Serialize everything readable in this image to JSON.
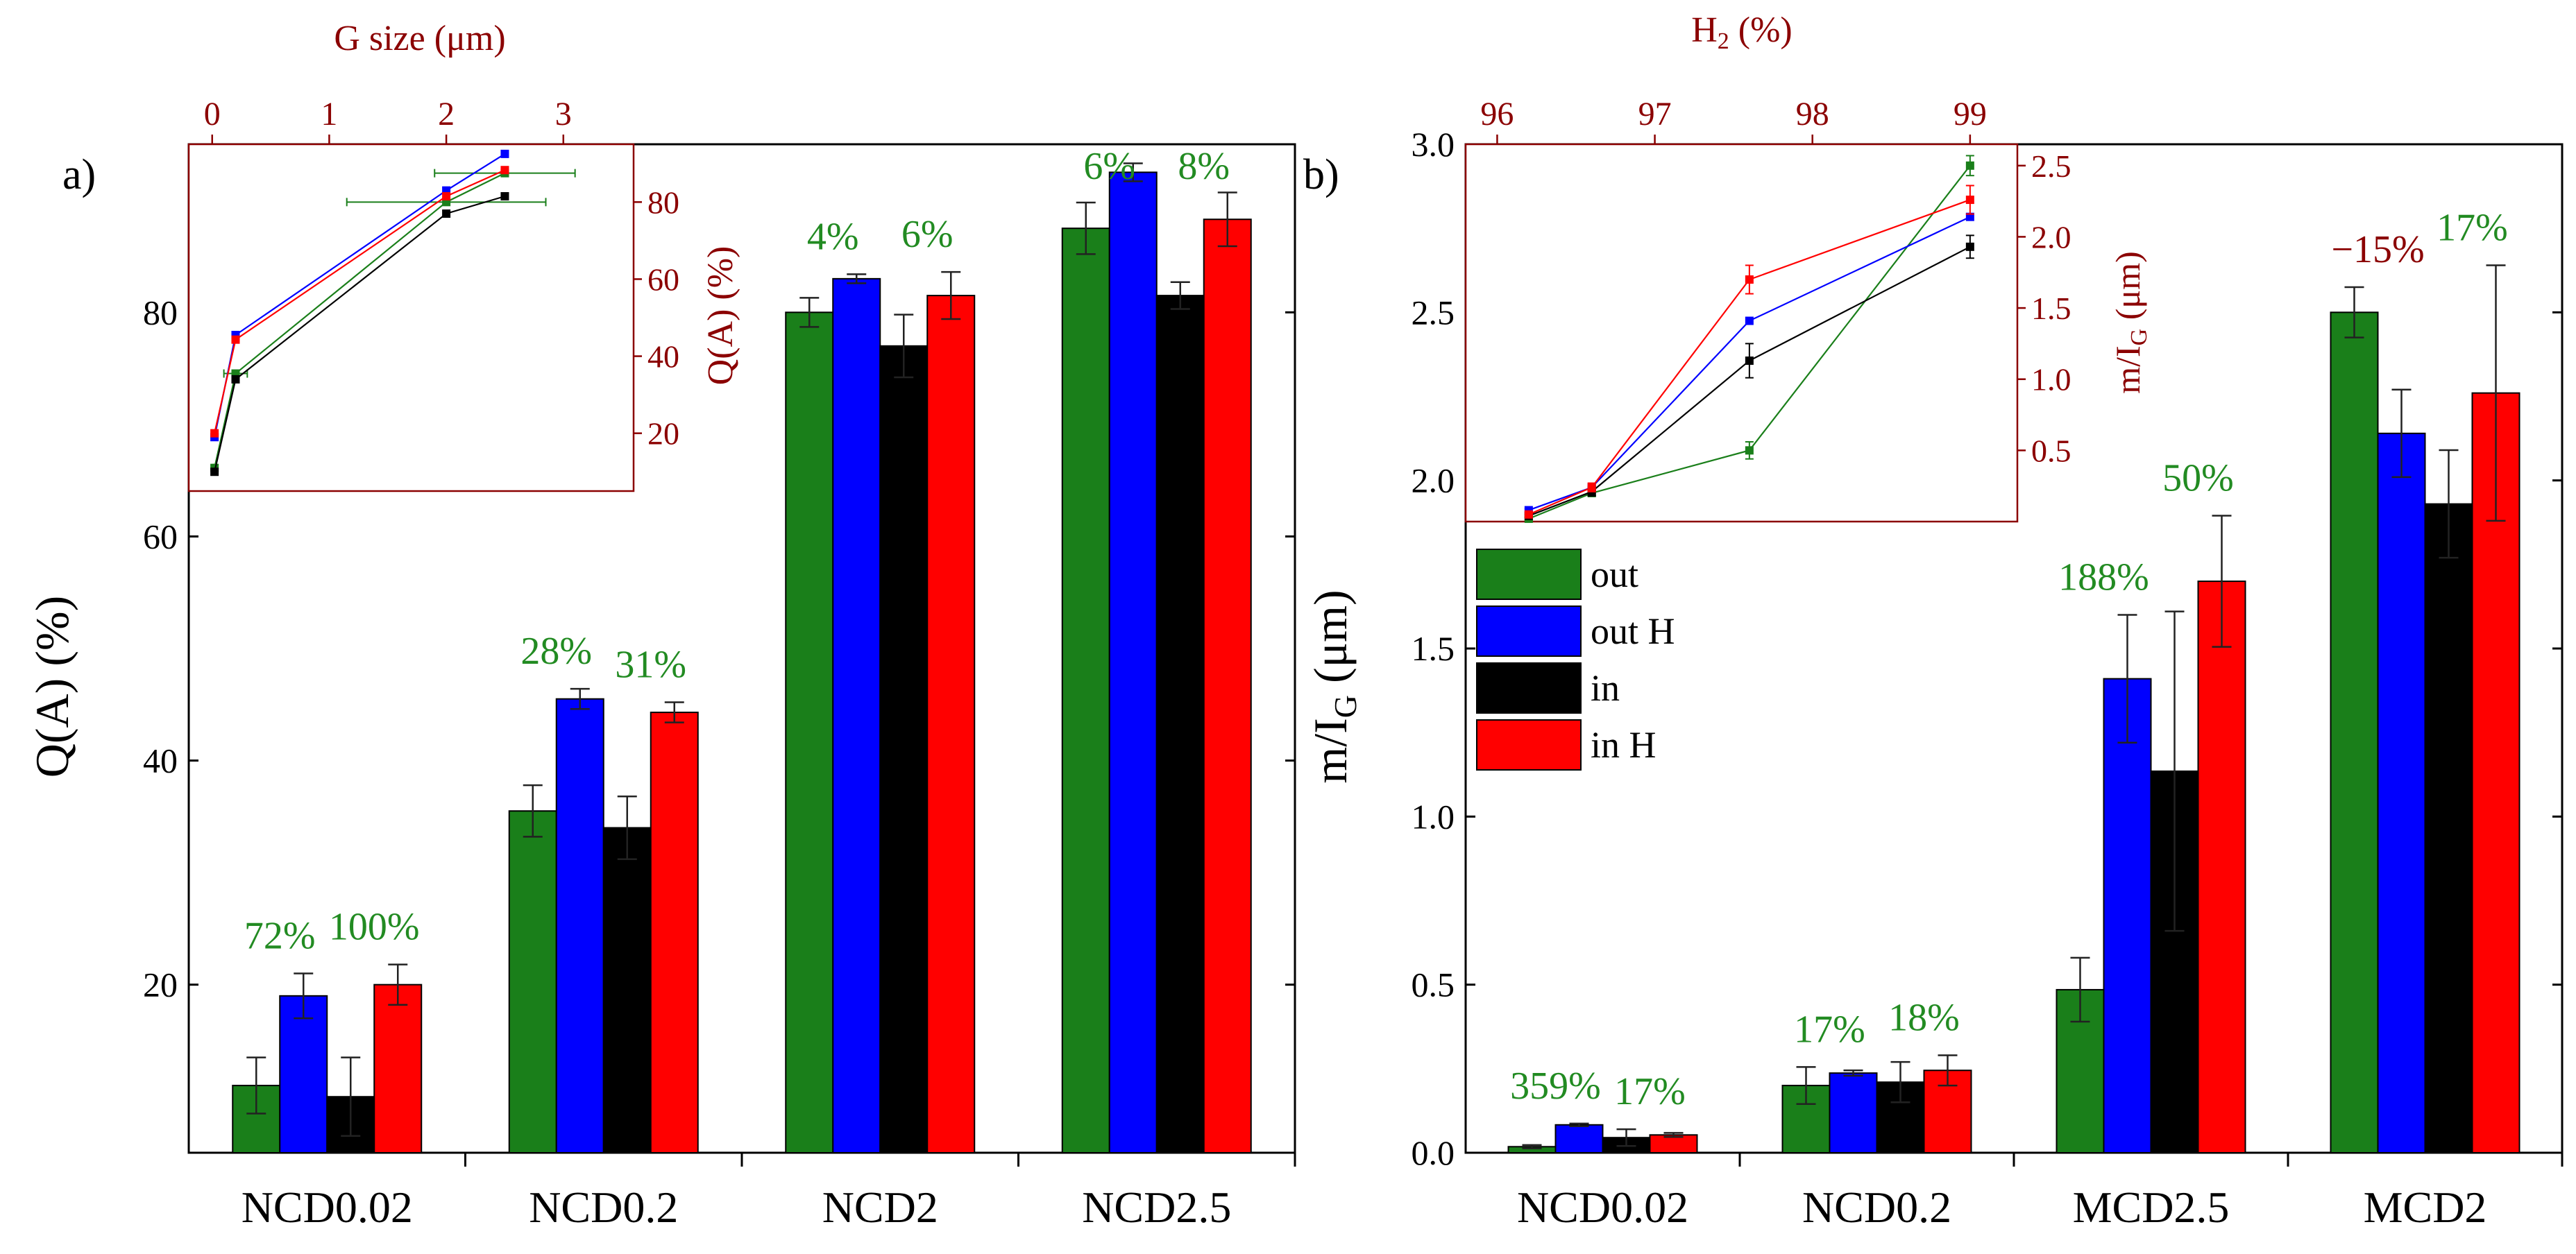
{
  "colors": {
    "out": "#1a7f1a",
    "out_h": "#0000ff",
    "in": "#000000",
    "in_h": "#ff0000",
    "axis_red": "#8b0000",
    "annot_green": "#228b22",
    "annot_red": "#8b0000"
  },
  "legend": {
    "items": [
      {
        "label": "out",
        "color_key": "out"
      },
      {
        "label": "out H",
        "color_key": "out_h"
      },
      {
        "label": "in",
        "color_key": "in"
      },
      {
        "label": "in H",
        "color_key": "in_h"
      }
    ]
  },
  "chart_data": [
    {
      "id": "a",
      "panel_label": "a)",
      "type": "bar",
      "ylabel": "Q(A) (%)",
      "ylim": [
        5,
        95
      ],
      "yticks": [
        20,
        40,
        60,
        80
      ],
      "categories": [
        "NCD0.02",
        "NCD0.2",
        "NCD2",
        "NCD2.5"
      ],
      "series": [
        {
          "name": "out",
          "values": [
            11,
            35.5,
            80,
            87.5
          ],
          "errors": [
            2.5,
            2.3,
            1.3,
            2.3
          ]
        },
        {
          "name": "out H",
          "values": [
            19,
            45.5,
            83,
            92.5
          ],
          "errors": [
            2,
            0.9,
            0.4,
            0.8
          ]
        },
        {
          "name": "in",
          "values": [
            10,
            34,
            77,
            81.5
          ],
          "errors": [
            3.5,
            2.8,
            2.8,
            1.2
          ]
        },
        {
          "name": "in H",
          "values": [
            20,
            44.3,
            81.5,
            88.3
          ],
          "errors": [
            1.8,
            0.9,
            2.1,
            2.4
          ]
        }
      ],
      "annotations": [
        {
          "text": "72%",
          "category": 0,
          "over": 0,
          "color": "green"
        },
        {
          "text": "100%",
          "category": 0,
          "over": 2,
          "color": "green"
        },
        {
          "text": "28%",
          "category": 1,
          "over": 0,
          "color": "green"
        },
        {
          "text": "31%",
          "category": 1,
          "over": 2,
          "color": "green"
        },
        {
          "text": "4%",
          "category": 2,
          "over": 0,
          "color": "green"
        },
        {
          "text": "6%",
          "category": 2,
          "over": 2,
          "color": "green"
        },
        {
          "text": "6%",
          "category": 3,
          "over": 0,
          "color": "green"
        },
        {
          "text": "8%",
          "category": 3,
          "over": 2,
          "color": "green"
        }
      ],
      "inset": {
        "type": "line",
        "xlabel": "G size (μm)",
        "xlim": [
          -0.2,
          3.6
        ],
        "xticks": [
          0,
          1,
          2,
          3
        ],
        "ylabel": "Q(A) (%)",
        "ylim": [
          5,
          95
        ],
        "yticks": [
          20,
          40,
          60,
          80
        ],
        "series": [
          {
            "name": "out",
            "x": [
              0.02,
              0.2,
              2.0,
              2.5
            ],
            "y": [
              11,
              35.5,
              80,
              87.5
            ],
            "xerr": [
              0.01,
              0.1,
              0.85,
              0.6
            ]
          },
          {
            "name": "out H",
            "x": [
              0.02,
              0.2,
              2.0,
              2.5
            ],
            "y": [
              19,
              45.5,
              83,
              92.5
            ]
          },
          {
            "name": "in",
            "x": [
              0.02,
              0.2,
              2.0,
              2.5
            ],
            "y": [
              10,
              34,
              77,
              81.5
            ]
          },
          {
            "name": "in H",
            "x": [
              0.02,
              0.2,
              2.0,
              2.5
            ],
            "y": [
              20,
              44.3,
              81.5,
              88.3
            ]
          }
        ]
      }
    },
    {
      "id": "b",
      "panel_label": "b)",
      "type": "bar",
      "ylabel": "m/I",
      "ylabel_sub": "G",
      "ylabel_unit": " (μm)",
      "ylim": [
        0,
        3
      ],
      "yticks": [
        0.0,
        0.5,
        1.0,
        1.5,
        2.0,
        2.5,
        3.0
      ],
      "ytick_labels": [
        "0.0",
        "0.5",
        "1.0",
        "1.5",
        "2.0",
        "2.5",
        "3.0"
      ],
      "categories": [
        "NCD0.02",
        "NCD0.2",
        "MCD2.5",
        "MCD2"
      ],
      "series": [
        {
          "name": "out",
          "values": [
            0.018,
            0.2,
            0.485,
            2.5
          ],
          "errors": [
            0.005,
            0.055,
            0.095,
            0.075
          ]
        },
        {
          "name": "out H",
          "values": [
            0.083,
            0.237,
            1.41,
            2.14
          ],
          "errors": [
            0.004,
            0.008,
            0.19,
            0.13
          ]
        },
        {
          "name": "in",
          "values": [
            0.045,
            0.21,
            1.135,
            1.93
          ],
          "errors": [
            0.025,
            0.06,
            0.475,
            0.16
          ]
        },
        {
          "name": "in H",
          "values": [
            0.053,
            0.245,
            1.7,
            2.26
          ],
          "errors": [
            0.006,
            0.045,
            0.195,
            0.38
          ]
        }
      ],
      "annotations": [
        {
          "text": "359%",
          "category": 0,
          "over": 0,
          "color": "green"
        },
        {
          "text": "17%",
          "category": 0,
          "over": 2,
          "color": "green"
        },
        {
          "text": "17%",
          "category": 1,
          "over": 0,
          "color": "green"
        },
        {
          "text": "18%",
          "category": 1,
          "over": 2,
          "color": "green"
        },
        {
          "text": "188%",
          "category": 2,
          "over": 0,
          "color": "green"
        },
        {
          "text": "50%",
          "category": 2,
          "over": 2,
          "color": "green"
        },
        {
          "text": "−15%",
          "category": 3,
          "over": 0,
          "color": "red"
        },
        {
          "text": "17%",
          "category": 3,
          "over": 2,
          "color": "green"
        }
      ],
      "inset": {
        "type": "line",
        "xlabel": "H",
        "xlabel_sub": "2",
        "xlabel_unit": " (%)",
        "xlim": [
          95.8,
          99.3
        ],
        "xticks": [
          96,
          97,
          98,
          99
        ],
        "ylabel": "m/I",
        "ylabel_sub": "G",
        "ylabel_unit": " (μm)",
        "ylim": [
          0,
          2.65
        ],
        "yticks": [
          0.5,
          1.0,
          1.5,
          2.0,
          2.5
        ],
        "ytick_labels": [
          "0.5",
          "1.0",
          "1.5",
          "2.0",
          "2.5"
        ],
        "series": [
          {
            "name": "out",
            "x": [
              96.2,
              96.6,
              97.6,
              99.0
            ],
            "y": [
              0.02,
              0.2,
              0.5,
              2.5
            ],
            "yerr": [
              0.01,
              0.02,
              0.06,
              0.07
            ]
          },
          {
            "name": "out H",
            "x": [
              96.2,
              96.6,
              97.6,
              99.0
            ],
            "y": [
              0.08,
              0.24,
              1.41,
              2.14
            ],
            "yerr": [
              0.01,
              0.01,
              0.0,
              0.0
            ]
          },
          {
            "name": "in",
            "x": [
              96.2,
              96.6,
              97.6,
              99.0
            ],
            "y": [
              0.04,
              0.21,
              1.13,
              1.93
            ],
            "yerr": [
              0.01,
              0.03,
              0.12,
              0.08
            ]
          },
          {
            "name": "in H",
            "x": [
              96.2,
              96.6,
              97.6,
              99.0
            ],
            "y": [
              0.05,
              0.24,
              1.7,
              2.26
            ],
            "yerr": [
              0.01,
              0.03,
              0.1,
              0.1
            ]
          }
        ]
      }
    }
  ]
}
